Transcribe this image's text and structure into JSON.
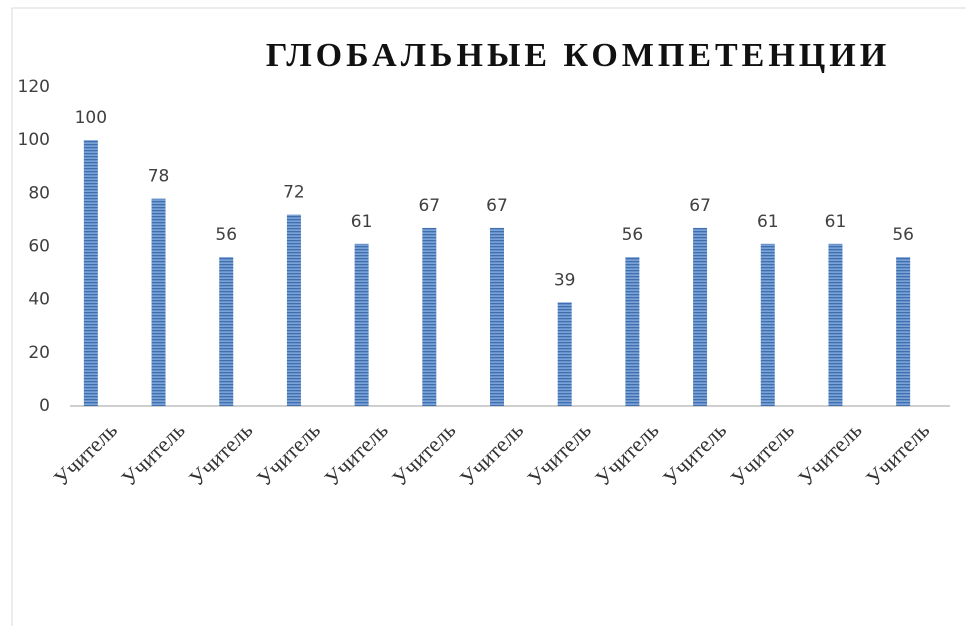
{
  "chart_data": {
    "type": "bar",
    "title": "ГЛОБАЛЬНЫЕ КОМПЕТЕНЦИИ",
    "categories": [
      "Учитель",
      "Учитель",
      "Учитель",
      "Учитель",
      "Учитель",
      "Учитель",
      "Учитель",
      "Учитель",
      "Учитель",
      "Учитель",
      "Учитель",
      "Учитель",
      "Учитель"
    ],
    "values": [
      100,
      78,
      56,
      72,
      61,
      67,
      67,
      39,
      56,
      67,
      61,
      61,
      56
    ],
    "color": "#5b8ac4",
    "ylim": [
      0,
      120
    ],
    "yticks": [
      0,
      20,
      40,
      60,
      80,
      100,
      120
    ],
    "grid": false
  }
}
